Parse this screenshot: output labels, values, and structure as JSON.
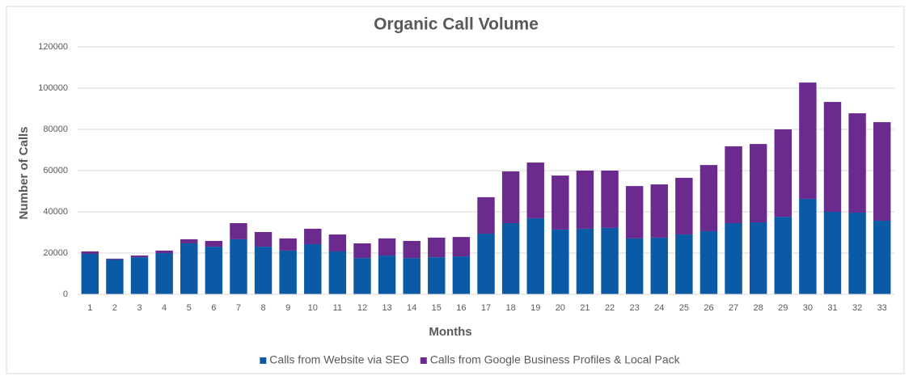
{
  "chart_data": {
    "type": "stacked_bar",
    "title": "Organic Call Volume",
    "x_label": "Months",
    "y_label": "Number of Calls",
    "categories": [
      "1",
      "2",
      "3",
      "4",
      "5",
      "6",
      "7",
      "8",
      "9",
      "10",
      "11",
      "12",
      "13",
      "14",
      "15",
      "16",
      "17",
      "18",
      "19",
      "20",
      "21",
      "22",
      "23",
      "24",
      "25",
      "26",
      "27",
      "28",
      "29",
      "30",
      "31",
      "32",
      "33"
    ],
    "series": [
      {
        "name": "Calls from Website via SEO",
        "color": "#0b5aa6",
        "values": [
          19600,
          16900,
          18000,
          20000,
          24700,
          23100,
          26700,
          23100,
          21200,
          24300,
          20800,
          17600,
          18800,
          17600,
          18000,
          18400,
          29400,
          34500,
          36900,
          31400,
          31800,
          32200,
          27100,
          27500,
          29000,
          30600,
          34500,
          34900,
          37600,
          46300,
          40000,
          39600,
          35700
        ]
      },
      {
        "name": "Calls from Google Business Profiles & Local Pack",
        "color": "#6b2a8d",
        "values": [
          1200,
          400,
          800,
          1200,
          2000,
          2800,
          7800,
          7100,
          5900,
          7500,
          8200,
          7100,
          8300,
          8300,
          9500,
          9400,
          17700,
          25100,
          27000,
          26200,
          28200,
          27800,
          25400,
          25800,
          27500,
          32100,
          37300,
          38000,
          42400,
          56400,
          53300,
          48200,
          47800
        ]
      }
    ],
    "ylim": [
      0,
      120000
    ],
    "yticks": [
      0,
      20000,
      40000,
      60000,
      80000,
      100000,
      120000
    ],
    "grid": true,
    "legend": "bottom"
  }
}
